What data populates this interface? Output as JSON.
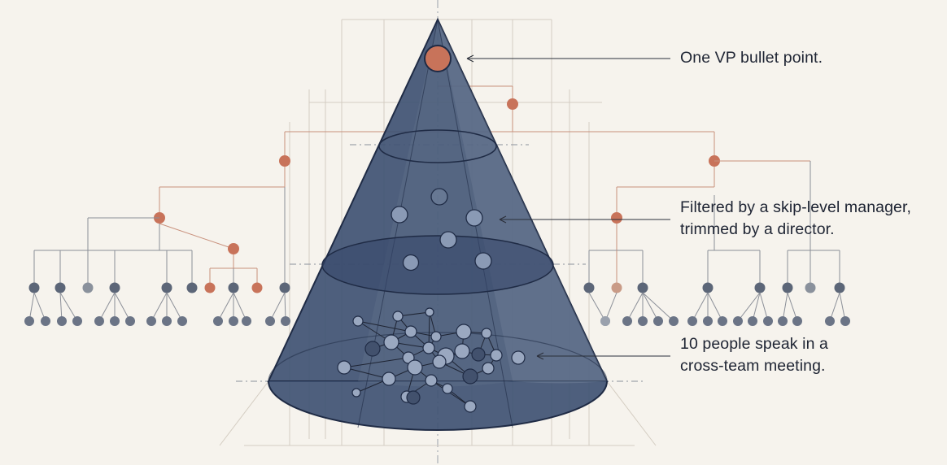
{
  "colors": {
    "background": "#f6f3ed",
    "cone_fill": "#3f5273",
    "cone_stroke": "#1f2b45",
    "accent_orange": "#c8735a",
    "node_gray": "#5c6678",
    "construction_line": "#c9c2b6"
  },
  "callouts": [
    {
      "lines": [
        "One VP bullet point."
      ]
    },
    {
      "lines": [
        "Filtered by a skip-level manager,",
        "trimmed by a director."
      ]
    },
    {
      "lines": [
        "10 people speak in a",
        "cross-team meeting."
      ]
    }
  ]
}
